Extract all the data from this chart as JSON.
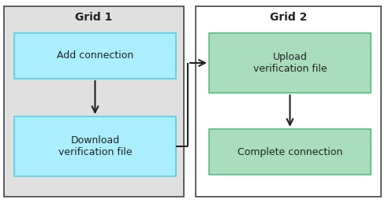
{
  "grid1_label": "Grid 1",
  "grid2_label": "Grid 2",
  "grid1_bg": "#e0e0e0",
  "grid2_bg": "#ffffff",
  "grid1_border": "#444444",
  "grid2_border": "#444444",
  "box1_label": "Add connection",
  "box2_label": "Download\nverification file",
  "box3_label": "Upload\nverification file",
  "box4_label": "Complete connection",
  "box1_color": "#aaeeff",
  "box2_color": "#aaeeff",
  "box3_color": "#aaddbb",
  "box4_color": "#aaddbb",
  "box_border_blue": "#55ccee",
  "box_border_green": "#55bb88",
  "label_fontsize": 9,
  "title_fontsize": 10,
  "text_color": "#222222",
  "arrow_color": "#222222",
  "fig_width": 4.89,
  "fig_height": 2.58,
  "dpi": 100
}
